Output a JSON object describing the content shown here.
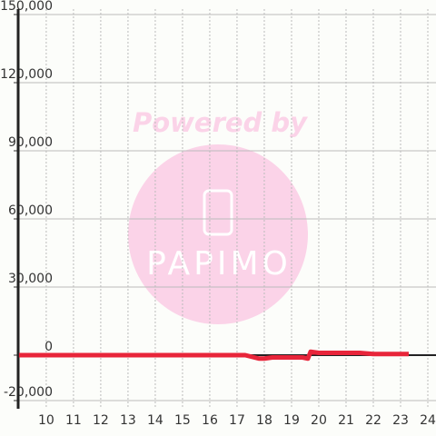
{
  "chart_data": {
    "type": "line",
    "watermark": {
      "caption": "Powered by",
      "logo": "PAPIMO"
    },
    "x": [
      9,
      17,
      17.3,
      17.8,
      18,
      18.3,
      19.4,
      19.6,
      19.7,
      20,
      21,
      21.5,
      22,
      23.3
    ],
    "series": [
      {
        "color": "#e8253a",
        "values": [
          0,
          0,
          0,
          -1500,
          -1500,
          -1000,
          -1000,
          -1500,
          1500,
          1000,
          1000,
          1000,
          500,
          500
        ]
      }
    ],
    "xlim": [
      8.97,
      24.3
    ],
    "xticks": [
      10,
      11,
      12,
      13,
      14,
      15,
      16,
      17,
      18,
      19,
      20,
      21,
      22,
      23,
      24
    ],
    "ylim": [
      -20000,
      150000
    ],
    "yticks": [
      {
        "value": -20000,
        "label": "-20,000"
      },
      0,
      {
        "value": 30000,
        "label": "30,000"
      },
      {
        "value": 60000,
        "label": "60,000"
      },
      {
        "value": 90000,
        "label": "90,000"
      },
      {
        "value": 120000,
        "label": "120,000"
      },
      {
        "value": 150000,
        "label": "150,000"
      }
    ],
    "grid": true
  }
}
